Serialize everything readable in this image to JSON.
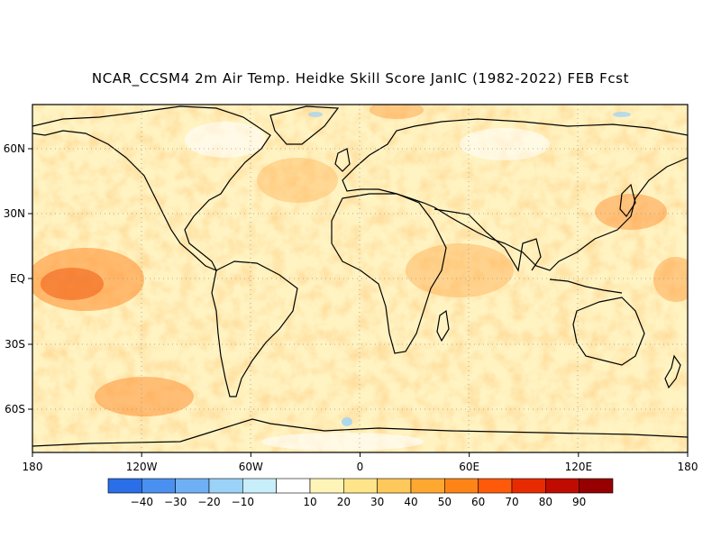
{
  "title": "NCAR_CCSM4 2m Air Temp. Heidke Skill Score JanIC (1982-2022) FEB Fcst",
  "axes": {
    "x_ticks": [
      "180",
      "120W",
      "60W",
      "0",
      "60E",
      "120E",
      "180"
    ],
    "y_ticks": [
      "60N",
      "30N",
      "EQ",
      "30S",
      "60S"
    ]
  },
  "colorbar": {
    "labels": [
      "-40",
      "-30",
      "-20",
      "-10",
      "10",
      "20",
      "30",
      "40",
      "50",
      "60",
      "70",
      "80",
      "90"
    ],
    "colors": [
      "#2a6ee8",
      "#4a90f0",
      "#6fb0f5",
      "#9ad2f8",
      "#c8eefa",
      "#ffffff",
      "#fff4b8",
      "#ffe48a",
      "#ffc85a",
      "#ffa830",
      "#ff8418",
      "#ff5a0a",
      "#e82a00",
      "#c00c00",
      "#960000"
    ]
  },
  "colors": {
    "land_outline": "#000000",
    "grid": "#999999",
    "water_background": "#fff6c8"
  }
}
